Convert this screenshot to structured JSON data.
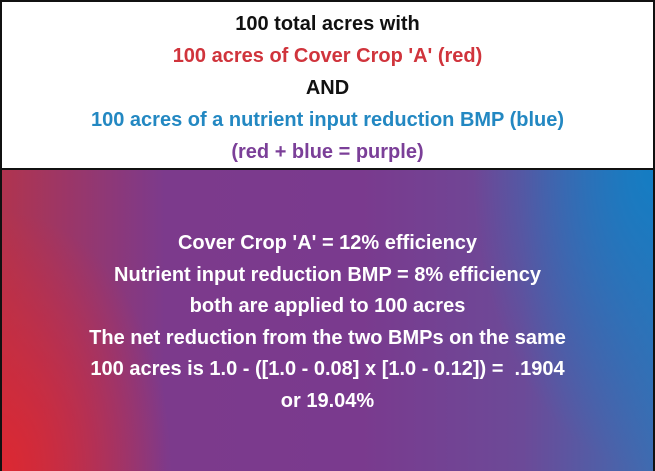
{
  "header": {
    "lines": [
      "100 total acres with",
      "100 acres of Cover Crop 'A' (red)",
      "AND",
      "100 acres of a nutrient input reduction BMP (blue)",
      "(red + blue = purple)"
    ]
  },
  "body": {
    "lines": [
      "Cover Crop 'A' = 12% efficiency",
      "Nutrient input reduction BMP = 8% efficiency",
      "both are applied to 100 acres",
      "The net reduction from the two BMPs on the same",
      "100 acres is 1.0 - ([1.0 - 0.08] x [1.0 - 0.12]) =  .1904",
      "or 19.04%"
    ]
  }
}
